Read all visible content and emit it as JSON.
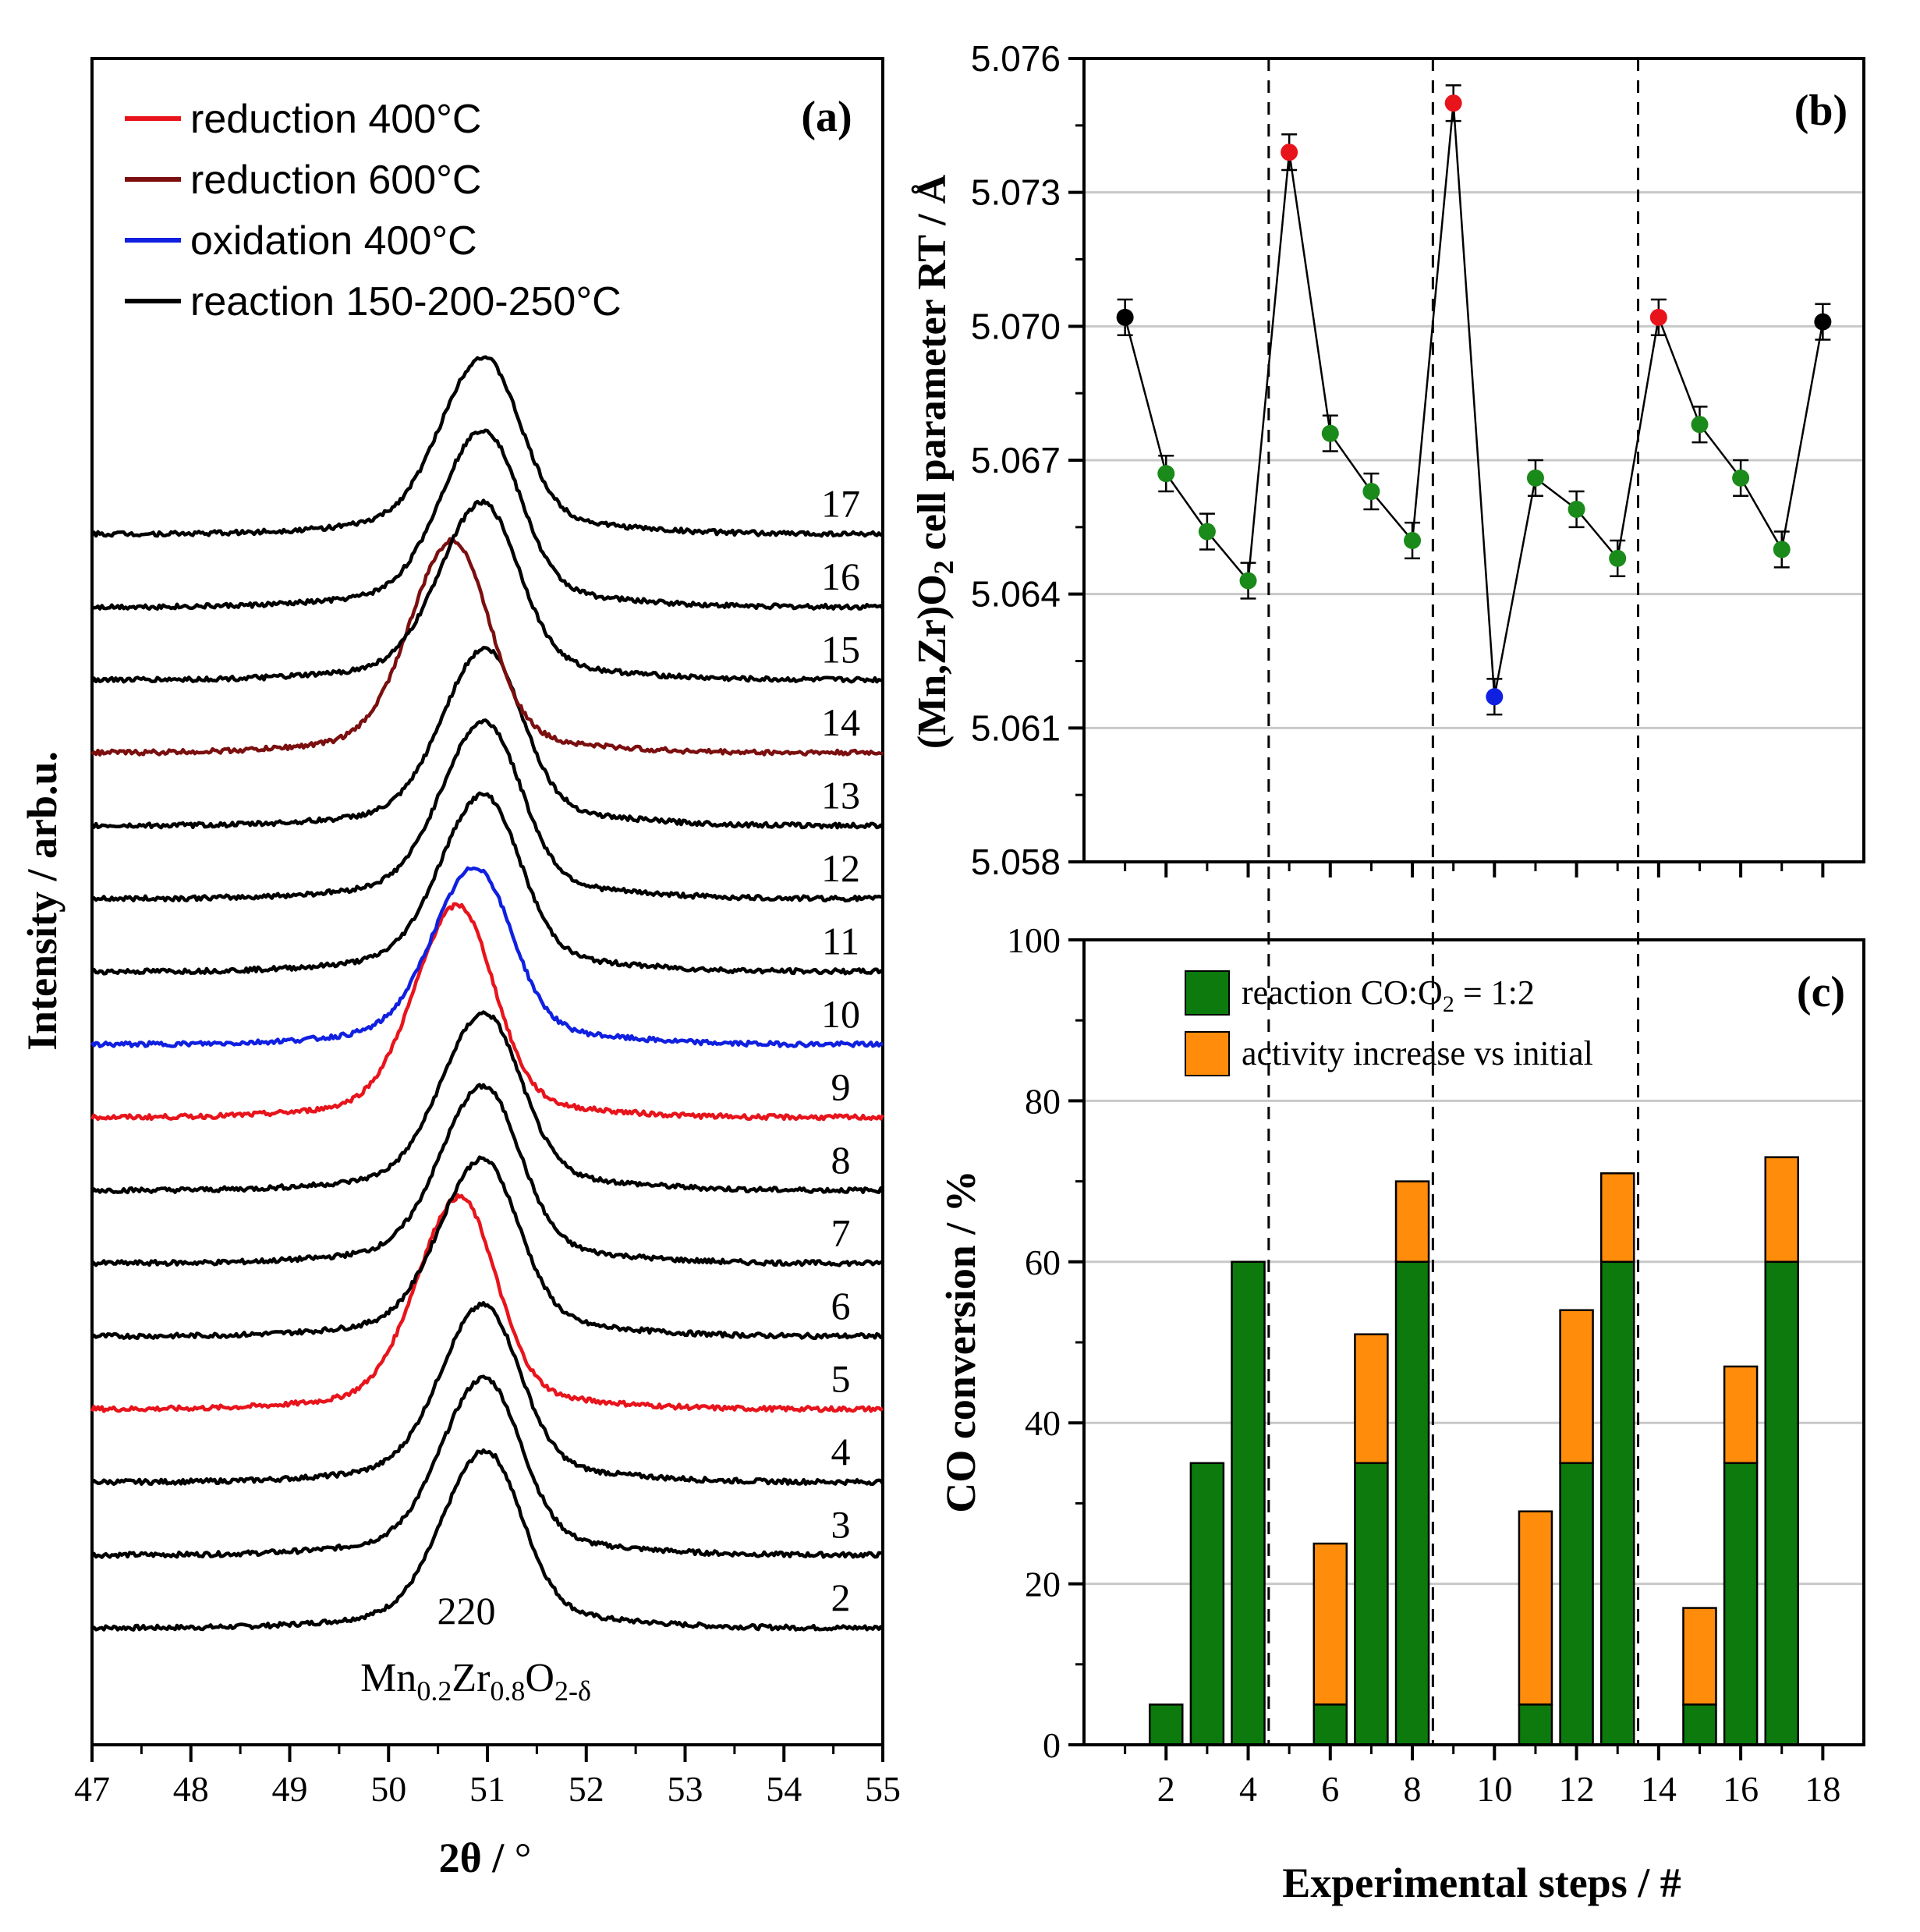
{
  "chart_data": [
    {
      "panel": "a",
      "type": "line",
      "panel_label": "(a)",
      "xlabel_main": "2θ / ",
      "xlabel_unit": "°",
      "ylabel": "Intensity / arb.u.",
      "xlim": [
        47,
        55
      ],
      "x_ticks": [
        "47",
        "48",
        "49",
        "50",
        "51",
        "52",
        "53",
        "54",
        "55"
      ],
      "legend": [
        {
          "label": "reduction 400°C",
          "color": "#e8141c"
        },
        {
          "label": "reduction 600°C",
          "color": "#7b0f0f"
        },
        {
          "label": "oxidation 400°C",
          "color": "#1020e0"
        },
        {
          "label": "reaction 150-200-250°C",
          "color": "#000000"
        }
      ],
      "peak_annotation": "220",
      "compound": {
        "t1": "Mn",
        "s1": "0.2",
        "t2": "Zr",
        "s2": "0.8",
        "t3": "O",
        "s3": "2-δ"
      },
      "series": [
        {
          "step": "2",
          "type": "reaction",
          "peak": 50.98
        },
        {
          "step": "3",
          "type": "reaction",
          "peak": 50.97
        },
        {
          "step": "4",
          "type": "reaction",
          "peak": 50.96
        },
        {
          "step": "5",
          "type": "reduction400",
          "peak": 50.72
        },
        {
          "step": "6",
          "type": "reaction",
          "peak": 50.95
        },
        {
          "step": "7",
          "type": "reaction",
          "peak": 50.96
        },
        {
          "step": "8",
          "type": "reaction",
          "peak": 50.97
        },
        {
          "step": "9",
          "type": "reduction400",
          "peak": 50.7
        },
        {
          "step": "10",
          "type": "oxidation400",
          "peak": 50.88
        },
        {
          "step": "11",
          "type": "reaction",
          "peak": 50.96
        },
        {
          "step": "12",
          "type": "reaction",
          "peak": 50.97
        },
        {
          "step": "13",
          "type": "reaction",
          "peak": 50.98
        },
        {
          "step": "14",
          "type": "reduction600",
          "peak": 50.65
        },
        {
          "step": "15",
          "type": "reaction",
          "peak": 50.95
        },
        {
          "step": "16",
          "type": "reaction",
          "peak": 50.96
        },
        {
          "step": "17",
          "type": "reaction",
          "peak": 50.96
        }
      ]
    },
    {
      "panel": "b",
      "type": "scatter",
      "panel_label": "(b)",
      "ylabel_pre": "(Mn,Zr)O",
      "ylabel_sub": "2",
      "ylabel_post": " cell parameter RT / Å",
      "ylim": [
        5.058,
        5.076
      ],
      "y_ticks": [
        "5.058",
        "5.061",
        "5.064",
        "5.067",
        "5.070",
        "5.073",
        "5.076"
      ],
      "xlim": [
        0,
        19
      ],
      "dividers": [
        4.5,
        8.5,
        13.5
      ],
      "points": [
        {
          "x": 1,
          "y": 5.0702,
          "err": 0.0004,
          "color": "#000000"
        },
        {
          "x": 2,
          "y": 5.0667,
          "err": 0.0004,
          "color": "#1a8a1a"
        },
        {
          "x": 3,
          "y": 5.0654,
          "err": 0.0004,
          "color": "#1a8a1a"
        },
        {
          "x": 4,
          "y": 5.0643,
          "err": 0.0004,
          "color": "#1a8a1a"
        },
        {
          "x": 5,
          "y": 5.0739,
          "err": 0.0004,
          "color": "#e8141c"
        },
        {
          "x": 6,
          "y": 5.0676,
          "err": 0.0004,
          "color": "#1a8a1a"
        },
        {
          "x": 7,
          "y": 5.0663,
          "err": 0.0004,
          "color": "#1a8a1a"
        },
        {
          "x": 8,
          "y": 5.0652,
          "err": 0.0004,
          "color": "#1a8a1a"
        },
        {
          "x": 9,
          "y": 5.075,
          "err": 0.0004,
          "color": "#e8141c"
        },
        {
          "x": 10,
          "y": 5.0617,
          "err": 0.0004,
          "color": "#1020e0"
        },
        {
          "x": 11,
          "y": 5.0666,
          "err": 0.0004,
          "color": "#1a8a1a"
        },
        {
          "x": 12,
          "y": 5.0659,
          "err": 0.0004,
          "color": "#1a8a1a"
        },
        {
          "x": 13,
          "y": 5.0648,
          "err": 0.0004,
          "color": "#1a8a1a"
        },
        {
          "x": 14,
          "y": 5.0702,
          "err": 0.0004,
          "color": "#e8141c"
        },
        {
          "x": 15,
          "y": 5.0678,
          "err": 0.0004,
          "color": "#1a8a1a"
        },
        {
          "x": 16,
          "y": 5.0666,
          "err": 0.0004,
          "color": "#1a8a1a"
        },
        {
          "x": 17,
          "y": 5.065,
          "err": 0.0004,
          "color": "#1a8a1a"
        },
        {
          "x": 18,
          "y": 5.0701,
          "err": 0.0004,
          "color": "#000000"
        }
      ]
    },
    {
      "panel": "c",
      "type": "bar",
      "panel_label": "(c)",
      "ylabel": "CO conversion / %",
      "xlabel": "Experimental steps / #",
      "ylim": [
        0,
        100
      ],
      "y_ticks": [
        "0",
        "20",
        "40",
        "60",
        "80",
        "100"
      ],
      "x_ticks": [
        "2",
        "4",
        "6",
        "8",
        "10",
        "12",
        "14",
        "16",
        "18"
      ],
      "xlim": [
        0,
        19
      ],
      "legend": [
        {
          "label_pre": "reaction CO:O",
          "label_sub": "2",
          "label_post": " = 1:2",
          "color": "#0c7a0c"
        },
        {
          "label_pre": "activity increase vs initial",
          "label_sub": "",
          "label_post": "",
          "color": "#ff8c0a"
        }
      ],
      "series": [
        {
          "name": "reaction CO:O2 = 1:2",
          "x": [
            2,
            3,
            4,
            6,
            7,
            8,
            11,
            12,
            13,
            15,
            16,
            17
          ],
          "values": [
            5,
            35,
            60,
            5,
            35,
            60,
            5,
            35,
            60,
            5,
            35,
            60
          ]
        },
        {
          "name": "activity increase vs initial",
          "x": [
            2,
            3,
            4,
            6,
            7,
            8,
            11,
            12,
            13,
            15,
            16,
            17
          ],
          "values": [
            0,
            0,
            0,
            20,
            16,
            10,
            24,
            19,
            11,
            12,
            12,
            13
          ]
        }
      ]
    }
  ]
}
